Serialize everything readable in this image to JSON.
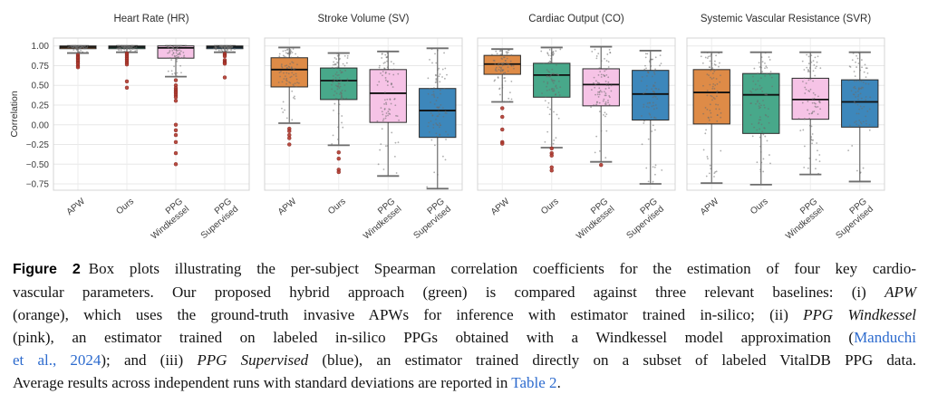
{
  "chart_data": {
    "type": "box",
    "ylabel": "Correlation",
    "ytick_values": [
      1.0,
      0.75,
      0.5,
      0.25,
      0.0,
      -0.25,
      -0.5,
      -0.75
    ],
    "ytick_labels": [
      "1.00",
      "0.75",
      "0.50",
      "0.25",
      "0.00",
      "−0.25",
      "−0.50",
      "−0.75"
    ],
    "ylim": [
      -0.83,
      1.1
    ],
    "grid": true,
    "categories": [
      [
        "APW"
      ],
      [
        "Ours"
      ],
      [
        "PPG",
        "Windkessel"
      ],
      [
        "PPG",
        "Supervised"
      ]
    ],
    "series_names": [
      "APW",
      "Ours",
      "PPG Windkessel",
      "PPG Supervised"
    ],
    "series_colors": {
      "APW": "#de8b47",
      "Ours": "#48a88a",
      "PPG Windkessel": "#f6c3e6",
      "PPG Supervised": "#3d87bb"
    },
    "outlier_color": "#b0382e",
    "whisker_color": "#6e6e6e",
    "jitter_color": "#6b6b6b",
    "panels": [
      {
        "title": "Heart Rate (HR)",
        "boxes": [
          {
            "series": "APW",
            "whislo": 0.91,
            "q1": 0.965,
            "med": 0.985,
            "q3": 1.0,
            "whishi": 1.0,
            "outliers": [
              0.885,
              0.87,
              0.855,
              0.84,
              0.825,
              0.81,
              0.79,
              0.775,
              0.745,
              0.73
            ]
          },
          {
            "series": "Ours",
            "whislo": 0.92,
            "q1": 0.965,
            "med": 0.985,
            "q3": 1.0,
            "whishi": 1.0,
            "outliers": [
              0.905,
              0.89,
              0.87,
              0.85,
              0.83,
              0.81,
              0.785,
              0.765,
              0.55,
              0.47
            ]
          },
          {
            "series": "PPG Windkessel",
            "whislo": 0.61,
            "q1": 0.845,
            "med": 0.975,
            "q3": 1.0,
            "whishi": 1.0,
            "outliers": [
              0.565,
              0.5,
              0.465,
              0.44,
              0.42,
              0.4,
              0.375,
              0.35,
              0.305,
              0.0,
              -0.07,
              -0.13,
              -0.22,
              -0.36,
              -0.5
            ]
          },
          {
            "series": "PPG Supervised",
            "whislo": 0.92,
            "q1": 0.965,
            "med": 0.985,
            "q3": 1.0,
            "whishi": 1.0,
            "outliers": [
              0.9,
              0.885,
              0.87,
              0.82,
              0.8,
              0.785,
              0.775,
              0.6
            ]
          }
        ]
      },
      {
        "title": "Stroke Volume (SV)",
        "boxes": [
          {
            "series": "APW",
            "whislo": 0.02,
            "q1": 0.48,
            "med": 0.7,
            "q3": 0.85,
            "whishi": 0.98,
            "outliers": [
              -0.05,
              -0.08,
              -0.13,
              -0.17,
              -0.25
            ]
          },
          {
            "series": "Ours",
            "whislo": -0.26,
            "q1": 0.32,
            "med": 0.56,
            "q3": 0.72,
            "whishi": 0.91,
            "outliers": [
              -0.35,
              -0.43,
              -0.57,
              -0.6
            ]
          },
          {
            "series": "PPG Windkessel",
            "whislo": -0.65,
            "q1": 0.03,
            "med": 0.4,
            "q3": 0.7,
            "whishi": 0.93,
            "outliers": []
          },
          {
            "series": "PPG Supervised",
            "whislo": -0.81,
            "q1": -0.16,
            "med": 0.18,
            "q3": 0.46,
            "whishi": 0.97,
            "outliers": []
          }
        ]
      },
      {
        "title": "Cardiac Output (CO)",
        "boxes": [
          {
            "series": "APW",
            "whislo": 0.29,
            "q1": 0.64,
            "med": 0.77,
            "q3": 0.88,
            "whishi": 0.96,
            "outliers": [
              0.21,
              0.1,
              -0.06,
              -0.22,
              -0.24
            ]
          },
          {
            "series": "Ours",
            "whislo": -0.29,
            "q1": 0.35,
            "med": 0.63,
            "q3": 0.78,
            "whishi": 0.98,
            "outliers": [
              -0.3,
              -0.36,
              -0.39,
              -0.54,
              -0.58
            ]
          },
          {
            "series": "PPG Windkessel",
            "whislo": -0.47,
            "q1": 0.24,
            "med": 0.51,
            "q3": 0.71,
            "whishi": 0.99,
            "outliers": [
              -0.51
            ]
          },
          {
            "series": "PPG Supervised",
            "whislo": -0.75,
            "q1": 0.06,
            "med": 0.39,
            "q3": 0.69,
            "whishi": 0.94,
            "outliers": []
          }
        ]
      },
      {
        "title": "Systemic Vascular Resistance (SVR)",
        "boxes": [
          {
            "series": "APW",
            "whislo": -0.74,
            "q1": 0.01,
            "med": 0.41,
            "q3": 0.7,
            "whishi": 0.92,
            "outliers": []
          },
          {
            "series": "Ours",
            "whislo": -0.76,
            "q1": -0.11,
            "med": 0.38,
            "q3": 0.65,
            "whishi": 0.92,
            "outliers": []
          },
          {
            "series": "PPG Windkessel",
            "whislo": -0.63,
            "q1": 0.07,
            "med": 0.32,
            "q3": 0.59,
            "whishi": 0.92,
            "outliers": []
          },
          {
            "series": "PPG Supervised",
            "whislo": -0.72,
            "q1": -0.03,
            "med": 0.29,
            "q3": 0.57,
            "whishi": 0.92,
            "outliers": []
          }
        ]
      }
    ]
  },
  "caption": {
    "lines": [
      {
        "segments": [
          {
            "t": "Figure 2",
            "k": "label"
          },
          {
            "t": "Box plots illustrating the per-subject Spearman correlation coefficients for the estimation of four key cardio-",
            "k": "text"
          }
        ]
      },
      {
        "segments": [
          {
            "t": "vascular parameters. Our proposed hybrid approach (green) is compared against three relevant baselines: (i) ",
            "k": "text"
          },
          {
            "t": "APW",
            "k": "em"
          }
        ]
      },
      {
        "segments": [
          {
            "t": "(orange), which uses the ground-truth invasive APWs for inference with estimator trained in-silico; (ii) ",
            "k": "text"
          },
          {
            "t": "PPG Windkessel",
            "k": "em"
          }
        ]
      },
      {
        "segments": [
          {
            "t": "(pink), an estimator trained on labeled in-silico PPGs obtained with a Windkessel model approximation (",
            "k": "text"
          },
          {
            "t": "Manduchi",
            "k": "link"
          }
        ]
      },
      {
        "segments": [
          {
            "t": "et al., 2024",
            "k": "link"
          },
          {
            "t": "); and (iii) ",
            "k": "text"
          },
          {
            "t": "PPG Supervised",
            "k": "em"
          },
          {
            "t": " (blue), an estimator trained directly on a subset of labeled VitalDB PPG data.",
            "k": "text"
          }
        ]
      },
      {
        "segments": [
          {
            "t": "Average results across independent runs with standard deviations are reported in ",
            "k": "text"
          },
          {
            "t": "Table 2",
            "k": "link"
          },
          {
            "t": ".",
            "k": "text"
          }
        ]
      }
    ]
  }
}
